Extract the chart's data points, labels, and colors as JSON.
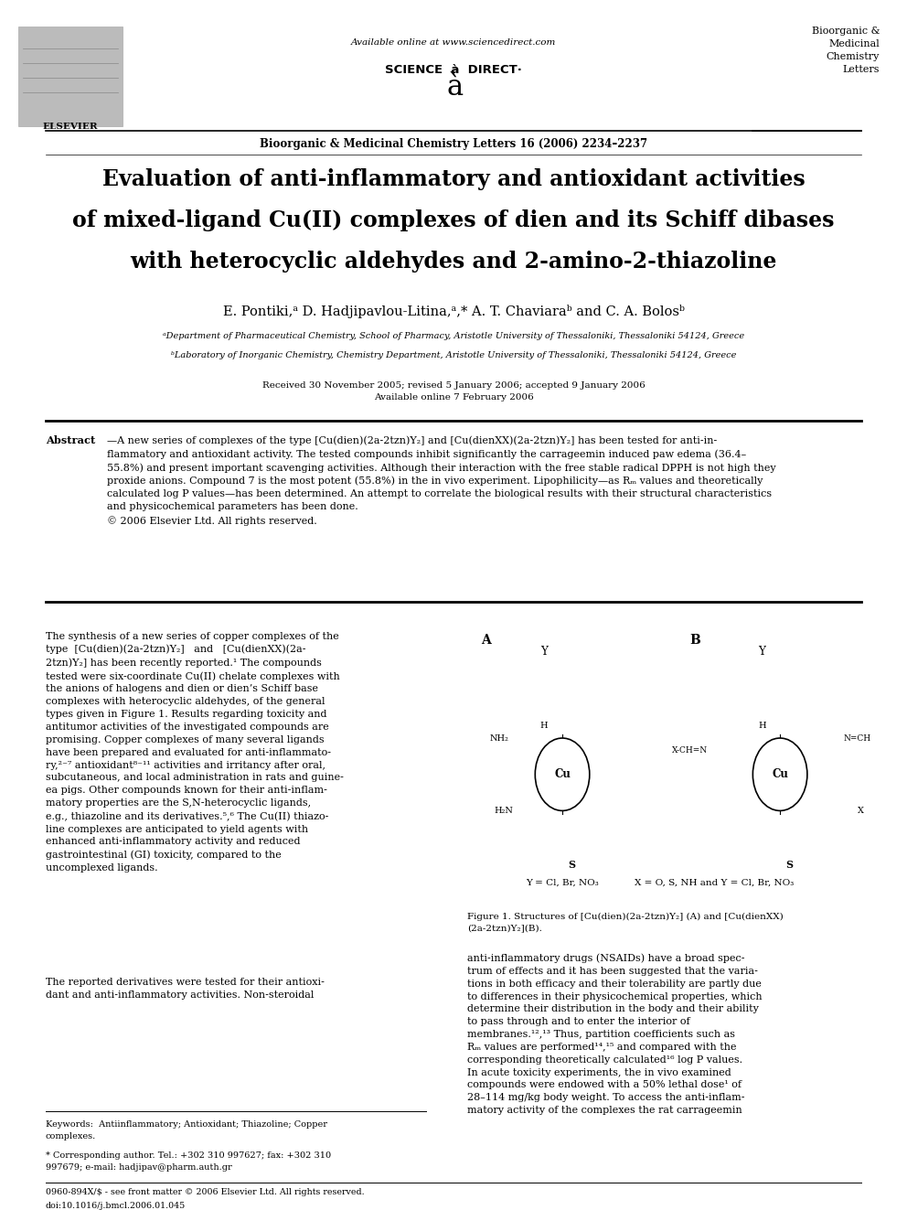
{
  "background_color": "#ffffff",
  "page_width": 9.92,
  "page_height": 13.23,
  "header": {
    "available_online": "Available online at www.sciencedirect.com",
    "sciencedirect_text": "SCIENCE  à  DIRECT·",
    "journal_top_right": "Bioorganic &\nMedicinal\nChemistry\nLetters",
    "journal_line": "Bioorganic & Medicinal Chemistry Letters 16 (2006) 2234–2237",
    "elsevier_label": "ELSEVIER"
  },
  "title": {
    "line1": "Evaluation of anti-inflammatory and antioxidant activities",
    "line2": "of mixed-ligand Cu(II) complexes of dien and its Schiff dibases",
    "line3": "with heterocyclic aldehydes and 2-amino-2-thiazoline",
    "fontsize": 17
  },
  "authors": "E. Pontiki,ᵃ D. Hadjipavlou-Litina,ᵃ,* A. T. Chaviaraᵇ and C. A. Bolosᵇ",
  "affil_a": "ᵃDepartment of Pharmaceutical Chemistry, School of Pharmacy, Aristotle University of Thessaloniki, Thessaloniki 54124, Greece",
  "affil_b": "ᵇLaboratory of Inorganic Chemistry, Chemistry Department, Aristotle University of Thessaloniki, Thessaloniki 54124, Greece",
  "dates": "Received 30 November 2005; revised 5 January 2006; accepted 9 January 2006\nAvailable online 7 February 2006",
  "abstract_label": "Abstract",
  "abstract_text": "—A new series of complexes of the type [Cu(dien)(2a-2tzn)Y₂] and [Cu(dienXX)(2a-2tzn)Y₂] has been tested for anti-in-\nflammatory and antioxidant activity. The tested compounds inhibit significantly the carrageemin induced paw edema (36.4–\n55.8%) and present important scavenging activities. Although their interaction with the free stable radical DPPH is not high they\nproxide anions. Compound 7 is the most potent (55.8%) in the in vivo experiment. Lipophilicity—as Rₘ values and theoretically\ncalculated log P values—has been determined. An attempt to correlate the biological results with their structural characteristics\nand physicochemical parameters has been done.\n© 2006 Elsevier Ltd. All rights reserved.",
  "body_left1": "The synthesis of a new series of copper complexes of the\ntype  [Cu(dien)(2a-2tzn)Y₂]   and   [Cu(dienXX)(2a-\n2tzn)Y₂] has been recently reported.¹ The compounds\ntested were six-coordinate Cu(II) chelate complexes with\nthe anions of halogens and dien or dien’s Schiff base\ncomplexes with heterocyclic aldehydes, of the general\ntypes given in Figure 1. Results regarding toxicity and\nantitumor activities of the investigated compounds are\npromising. Copper complexes of many several ligands\nhave been prepared and evaluated for anti-inflammato-\nry,²⁻⁷ antioxidant⁸⁻¹¹ activities and irritancy after oral,\nsubcutaneous, and local administration in rats and guine-\nea pigs. Other compounds known for their anti-inflam-\nmatory properties are the S,N-heterocyclic ligands,\ne.g., thiazoline and its derivatives.⁵,⁶ The Cu(II) thiazo-\nline complexes are anticipated to yield agents with\nenhanced anti-inflammatory activity and reduced\ngastrointestinal (GI) toxicity, compared to the\nuncomplexed ligands.",
  "body_left2": "The reported derivatives were tested for their antioxi-\ndant and anti-inflammatory activities. Non-steroidal",
  "fig_label_A": "A",
  "fig_label_B": "B",
  "fig_caption": "Figure 1. Structures of [Cu(dien)(2a-2tzn)Y₂] (A) and [Cu(dienXX)\n(2a-2tzn)Y₂](B).",
  "fig_sub_A": "Y = Cl, Br, NO₃",
  "fig_sub_B": "X = O, S, NH and Y = Cl, Br, NO₃",
  "body_right": "anti-inflammatory drugs (NSAIDs) have a broad spec-\ntrum of effects and it has been suggested that the varia-\ntions in both efficacy and their tolerability are partly due\nto differences in their physicochemical properties, which\ndetermine their distribution in the body and their ability\nto pass through and to enter the interior of\nmembranes.¹²,¹³ Thus, partition coefficients such as\nRₘ values are performed¹⁴,¹⁵ and compared with the\ncorresponding theoretically calculated¹⁶ log P values.\nIn acute toxicity experiments, the in vivo examined\ncompounds were endowed with a 50% lethal dose¹ of\n28–114 mg/kg body weight. To access the anti-inflam-\nmatory activity of the complexes the rat carrageemin",
  "kw_line": "Keywords:  Antiinflammatory; Antioxidant; Thiazoline; Copper\ncomplexes.",
  "corr_line": "* Corresponding author. Tel.: +302 310 997627; fax: +302 310\n997679; e-mail: hadjipav@pharm.auth.gr",
  "issn_line": "0960-894X/$ - see front matter © 2006 Elsevier Ltd. All rights reserved.",
  "doi_line": "doi:10.1016/j.bmcl.2006.01.045"
}
